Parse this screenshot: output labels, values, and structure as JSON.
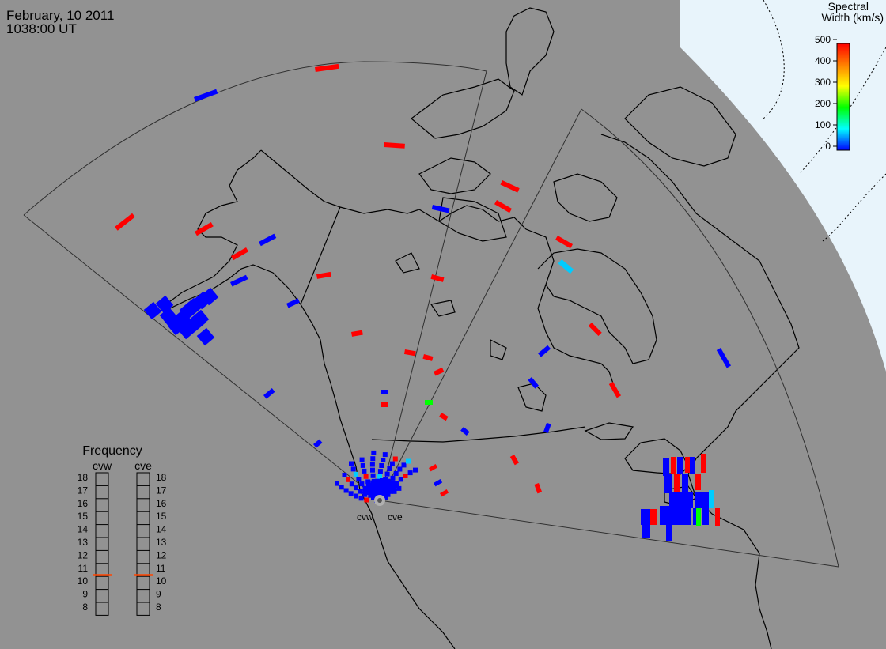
{
  "header": {
    "date": "February, 10 2011",
    "time": "1038:00 UT"
  },
  "colorbar": {
    "title_line1": "Spectral",
    "title_line2": "Width (km/s)",
    "ticks": [
      "500",
      "400",
      "300",
      "200",
      "100",
      "0"
    ],
    "colors": [
      "#ff0000",
      "#ff7f00",
      "#ffff00",
      "#00ff00",
      "#00ffff",
      "#0000ff"
    ]
  },
  "radars": {
    "west_label": "cvw",
    "east_label": "cve"
  },
  "frequency_panel": {
    "title": "Frequency",
    "col_west": "cvw",
    "col_east": "cve",
    "scale": [
      "18",
      "17",
      "16",
      "15",
      "14",
      "13",
      "12",
      "11",
      "10",
      "9",
      "8"
    ],
    "west_mhz": 10.6,
    "east_mhz": 10.6,
    "indicator_color": "#ff4500"
  },
  "colors": {
    "map_background": "#929292",
    "polar_region": "#e8f4fb",
    "coastline": "#000000",
    "fov_outline": "#303030",
    "high_width": "#ff0000",
    "low_width": "#0000ff",
    "mid_width": "#00ccff",
    "green_width": "#00ff00"
  }
}
